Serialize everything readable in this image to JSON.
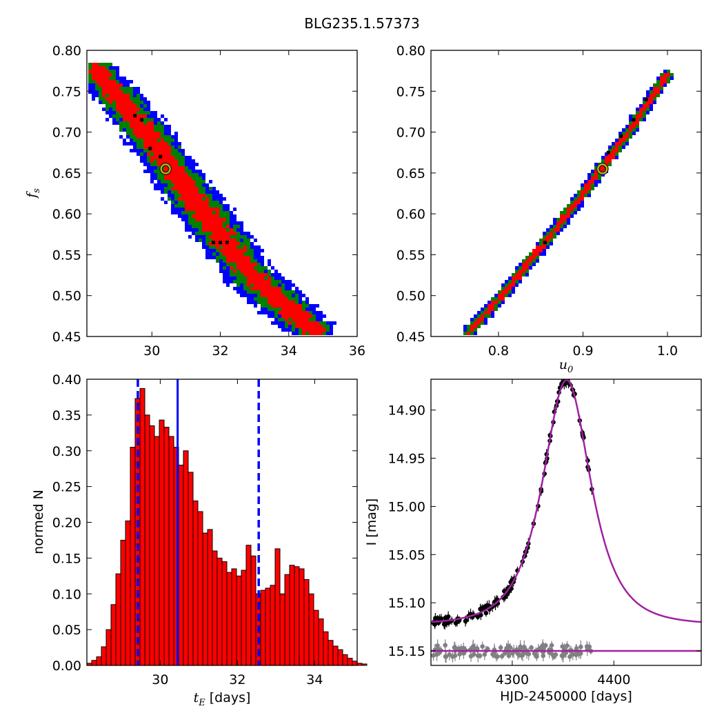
{
  "figure_title": "BLG235.1.57373",
  "chart_data": [
    {
      "id": "tE_vs_fs",
      "type": "heatmap",
      "xlabel": "",
      "ylabel": "f_s",
      "xlim": [
        28.1,
        36.0
      ],
      "ylim": [
        0.45,
        0.8
      ],
      "xticks": [
        30,
        32,
        34,
        36
      ],
      "yticks": [
        "0.45",
        "0.50",
        "0.55",
        "0.60",
        "0.65",
        "0.70",
        "0.75",
        "0.80"
      ],
      "level_colors": [
        "#0000ff",
        "#008000",
        "#ff0000",
        "#000000"
      ],
      "ridge": [
        [
          28.4,
          0.775
        ],
        [
          30.0,
          0.69
        ],
        [
          31.0,
          0.63
        ],
        [
          32.0,
          0.575
        ],
        [
          33.0,
          0.52
        ],
        [
          34.8,
          0.455
        ]
      ],
      "best_fit": {
        "x": 30.4,
        "y": 0.655
      },
      "dark_cells": [
        [
          29.5,
          0.72
        ],
        [
          29.7,
          0.715
        ],
        [
          29.95,
          0.68
        ],
        [
          30.25,
          0.67
        ],
        [
          31.8,
          0.565
        ],
        [
          32.0,
          0.565
        ],
        [
          32.2,
          0.565
        ]
      ]
    },
    {
      "id": "u0_vs_fs",
      "type": "heatmap",
      "xlabel": "u_0",
      "ylabel": "",
      "xlim": [
        0.72,
        1.04
      ],
      "ylim": [
        0.45,
        0.8
      ],
      "xticks": [
        "0.8",
        "0.9",
        "1.0"
      ],
      "yticks": [
        "0.45",
        "0.50",
        "0.55",
        "0.60",
        "0.65",
        "0.70",
        "0.75",
        "0.80"
      ],
      "level_colors": [
        "#0000ff",
        "#008000",
        "#ff0000",
        "#000000"
      ],
      "ridge": [
        [
          0.765,
          0.455
        ],
        [
          0.8,
          0.495
        ],
        [
          0.85,
          0.558
        ],
        [
          0.9,
          0.625
        ],
        [
          0.95,
          0.695
        ],
        [
          1.0,
          0.77
        ]
      ],
      "best_fit": {
        "x": 0.923,
        "y": 0.655
      },
      "dark_cells": [
        [
          0.855,
          0.565
        ],
        [
          0.93,
          0.675
        ],
        [
          0.945,
          0.695
        ],
        [
          0.96,
          0.715
        ],
        [
          0.975,
          0.74
        ]
      ]
    },
    {
      "id": "tE_histogram",
      "type": "bar",
      "xlabel": "[days]",
      "xlabel_symbol": "t_E",
      "ylabel": "normed N",
      "xlim": [
        28.1,
        35.1
      ],
      "ylim": [
        0,
        0.4
      ],
      "xticks": [
        30,
        32,
        34
      ],
      "yticks": [
        "0.00",
        "0.05",
        "0.10",
        "0.15",
        "0.20",
        "0.25",
        "0.30",
        "0.35",
        "0.40"
      ],
      "bin_start": 28.1,
      "bin_width": 0.125,
      "values": [
        0.003,
        0.007,
        0.012,
        0.026,
        0.05,
        0.085,
        0.128,
        0.175,
        0.202,
        0.305,
        0.373,
        0.387,
        0.35,
        0.335,
        0.32,
        0.343,
        0.333,
        0.32,
        0.305,
        0.28,
        0.3,
        0.27,
        0.23,
        0.215,
        0.185,
        0.19,
        0.16,
        0.15,
        0.145,
        0.13,
        0.135,
        0.125,
        0.133,
        0.168,
        0.153,
        0.1,
        0.105,
        0.108,
        0.112,
        0.163,
        0.1,
        0.127,
        0.14,
        0.138,
        0.135,
        0.12,
        0.1,
        0.077,
        0.065,
        0.047,
        0.035,
        0.027,
        0.022,
        0.015,
        0.01,
        0.006,
        0.003,
        0.002
      ],
      "bar_color": "#ff0000",
      "median": 30.45,
      "interval": [
        29.42,
        32.55
      ]
    },
    {
      "id": "light_curve",
      "type": "scatter",
      "xlabel": "HJD-2450000 [days]",
      "ylabel": "I [mag]",
      "xlim": [
        4220,
        4486
      ],
      "ylim": [
        15.165,
        14.868
      ],
      "y_inverted": true,
      "xticks": [
        4300,
        4400
      ],
      "yticks": [
        "14.90",
        "14.95",
        "15.00",
        "15.05",
        "15.10",
        "15.15"
      ],
      "model": {
        "t0": 4353.5,
        "tE": 30.45,
        "u0": 0.923,
        "f_s": 0.655,
        "I_base": 15.123
      },
      "model_color": "#a020a0",
      "obs_color": "#000000",
      "resid_color": "#808080",
      "resid_level": 15.15,
      "obs_x_range": [
        4222,
        4380
      ],
      "obs_count": 120
    }
  ]
}
